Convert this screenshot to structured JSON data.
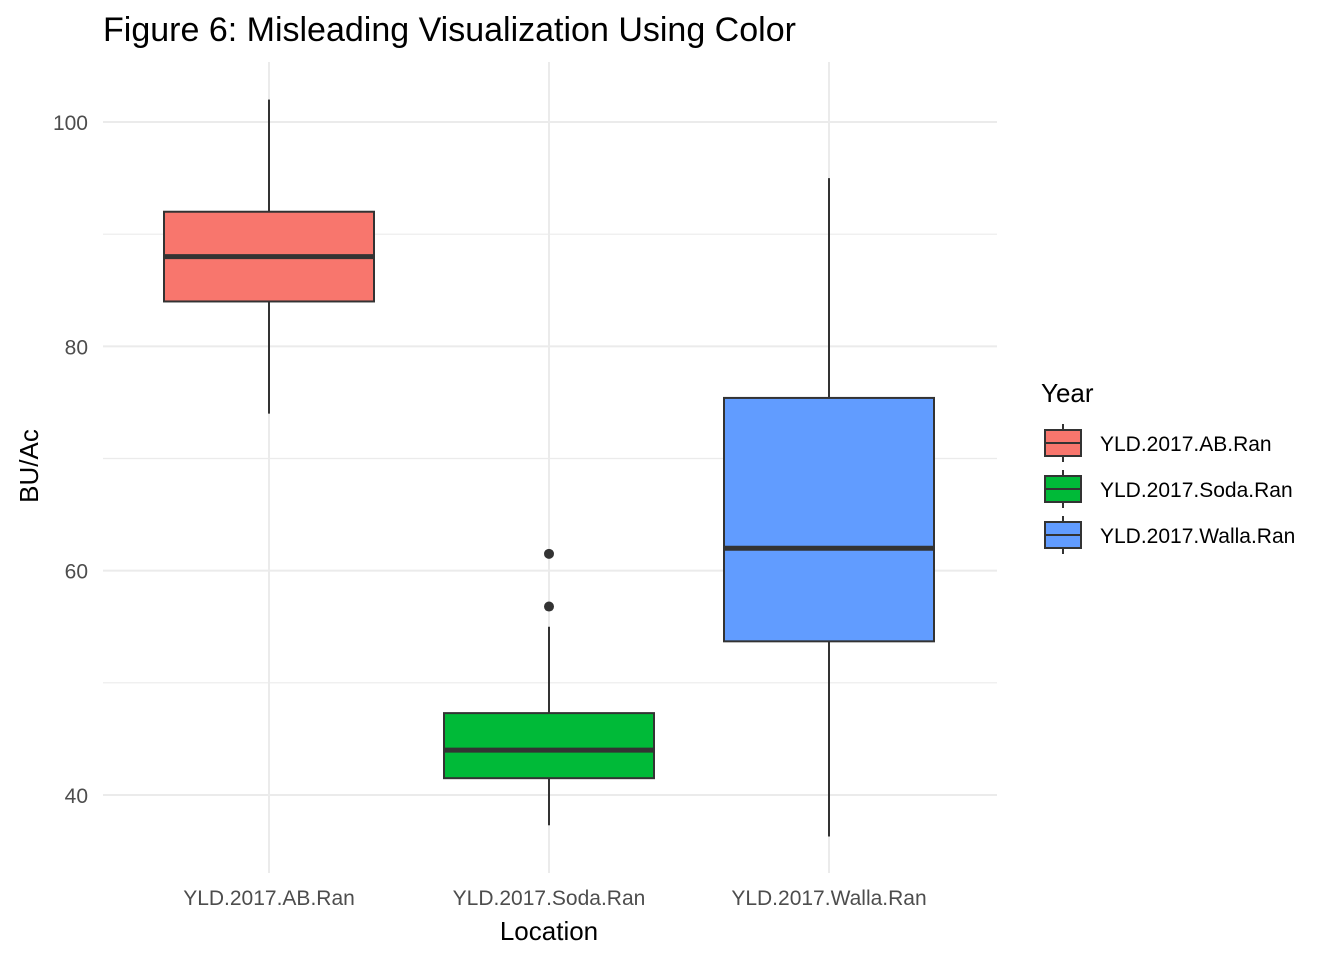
{
  "chart_data": {
    "type": "boxplot",
    "title": "Figure 6: Misleading Visualization Using Color",
    "xlabel": "Location",
    "ylabel": "BU/Ac",
    "ylim": [
      33,
      105
    ],
    "yticks": [
      40,
      60,
      80,
      100
    ],
    "grid": true,
    "legend": {
      "title": "Year",
      "position": "right"
    },
    "categories": [
      "YLD.2017.AB.Ran",
      "YLD.2017.Soda.Ran",
      "YLD.2017.Walla.Ran"
    ],
    "series": [
      {
        "name": "YLD.2017.AB.Ran",
        "color": "#F8766D",
        "min": 74,
        "q1": 84,
        "median": 88,
        "q3": 92,
        "max": 102,
        "outliers": []
      },
      {
        "name": "YLD.2017.Soda.Ran",
        "color": "#00BA38",
        "min": 37.3,
        "q1": 41.5,
        "median": 44,
        "q3": 47.3,
        "max": 55,
        "outliers": [
          56.8,
          61.5
        ]
      },
      {
        "name": "YLD.2017.Walla.Ran",
        "color": "#619CFF",
        "min": 36.3,
        "q1": 53.7,
        "median": 62,
        "q3": 75.4,
        "max": 95,
        "outliers": []
      }
    ]
  }
}
